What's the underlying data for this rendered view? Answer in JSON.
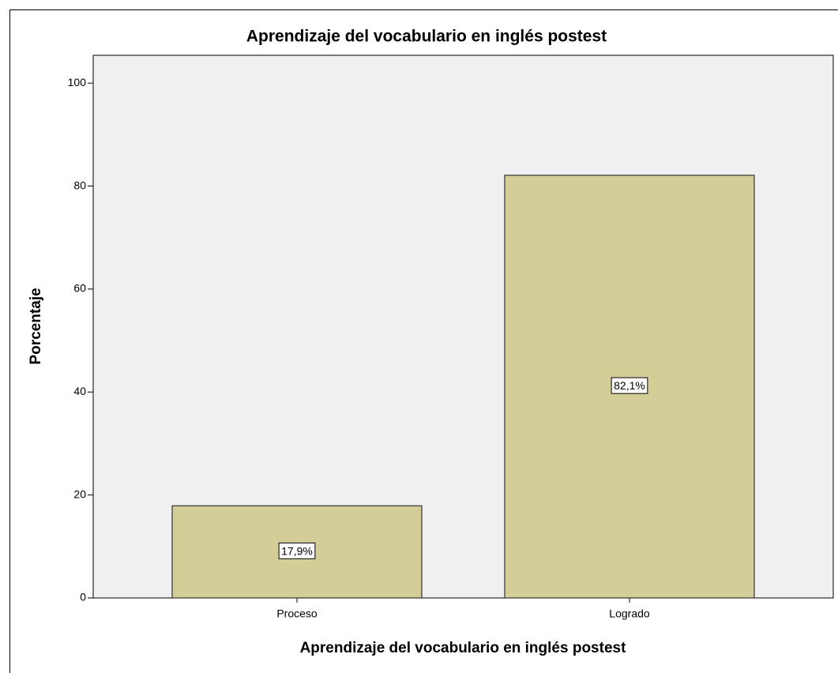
{
  "chart_data": {
    "type": "bar",
    "title": "Aprendizaje del vocabulario en inglés postest",
    "x_label": "Aprendizaje del vocabulario en inglés postest",
    "y_label": "Porcentaje",
    "categories": [
      "Proceso",
      "Logrado"
    ],
    "values": [
      17.9,
      82.1
    ],
    "value_labels": [
      "17,9%",
      "82,1%"
    ],
    "color": "#d3ce97",
    "ylim": [
      0,
      105.4
    ],
    "yticks": [
      0,
      20,
      40,
      60,
      80,
      100
    ],
    "grid": false
  }
}
